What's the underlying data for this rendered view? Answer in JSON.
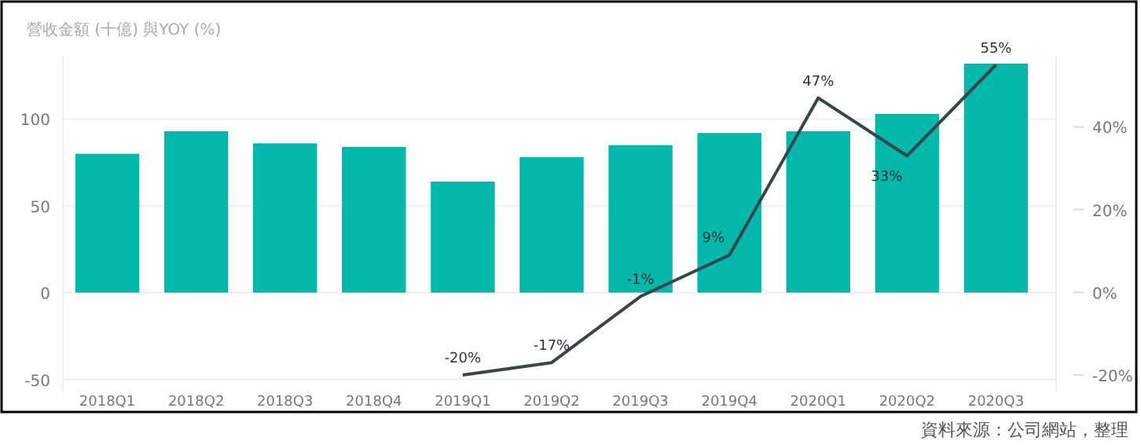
{
  "chart_data": {
    "type": "bar",
    "title": "營收金額 (十億) 與YOY (%)",
    "categories": [
      "2018Q1",
      "2018Q2",
      "2018Q3",
      "2018Q4",
      "2019Q1",
      "2019Q2",
      "2019Q3",
      "2019Q4",
      "2020Q1",
      "2020Q2",
      "2020Q3"
    ],
    "series": [
      {
        "color": "#01b8aa",
        "values": [
          80,
          93,
          86,
          84,
          64,
          78,
          85,
          92,
          93,
          103,
          132
        ]
      },
      {
        "type": "line",
        "axis": "y2",
        "color": "#374649",
        "values": [
          null,
          null,
          null,
          null,
          -20,
          -17,
          -1,
          9,
          47,
          33,
          55
        ],
        "value_labels": [
          null,
          null,
          null,
          null,
          "-20%",
          "-17%",
          "-1%",
          "9%",
          "47%",
          "33%",
          "55%"
        ]
      }
    ],
    "ylim": [
      -57,
      136
    ],
    "yticks": [
      -50,
      0,
      50,
      100
    ],
    "y2lim": [
      -24,
      57
    ],
    "y2ticks": [
      {
        "value": -20,
        "label": "-20%"
      },
      {
        "value": 0,
        "label": "0%"
      },
      {
        "value": 20,
        "label": "20%"
      },
      {
        "value": 40,
        "label": "40%"
      }
    ],
    "grid": "y",
    "annotations": [
      "資料來源：公司網站，整理"
    ]
  }
}
